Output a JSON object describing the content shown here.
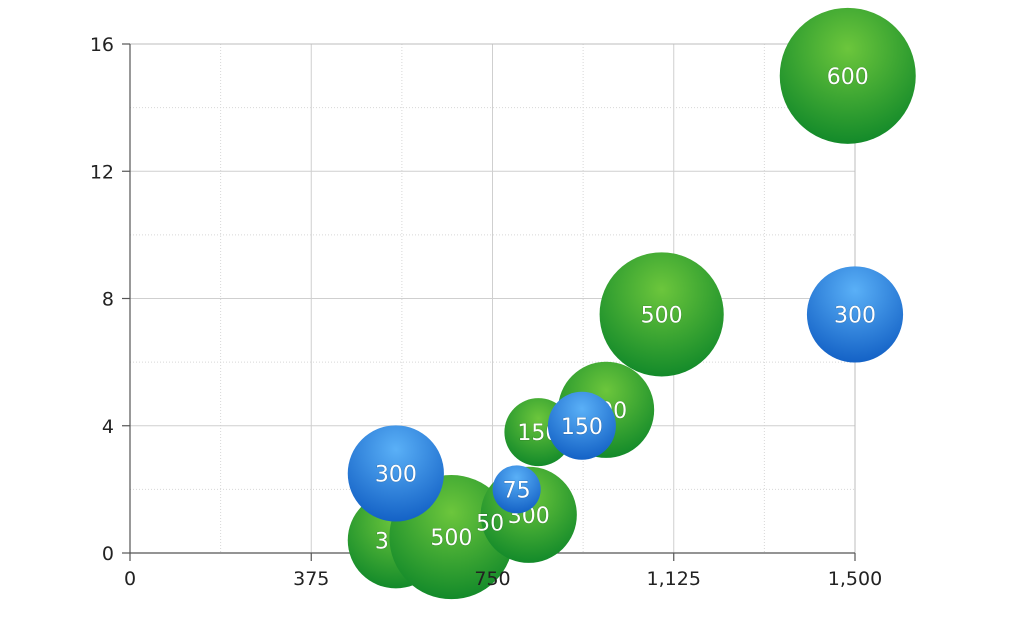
{
  "chart_data": {
    "type": "bubble",
    "xlim": [
      0,
      1500
    ],
    "ylim": [
      0,
      16
    ],
    "x_ticks": [
      "0",
      "375",
      "750",
      "1,125",
      "1,500"
    ],
    "x_tick_values": [
      0,
      375,
      750,
      1125,
      1500
    ],
    "y_ticks": [
      "0",
      "4",
      "8",
      "12",
      "16"
    ],
    "y_tick_values": [
      0,
      4,
      8,
      12,
      16
    ],
    "grid": true,
    "series": [
      {
        "color": "#2e9e2c",
        "points": [
          {
            "x": 550,
            "y": 0.4,
            "size": 300,
            "label": "300"
          },
          {
            "x": 665,
            "y": 0.5,
            "size": 500,
            "label": "500"
          },
          {
            "x": 825,
            "y": 1.2,
            "size": 300,
            "label": "300"
          },
          {
            "x": 845,
            "y": 3.8,
            "size": 150,
            "label": "150"
          },
          {
            "x": 985,
            "y": 4.5,
            "size": 300,
            "label": "300"
          },
          {
            "x": 1100,
            "y": 7.5,
            "size": 500,
            "label": "500"
          },
          {
            "x": 1485,
            "y": 15.0,
            "size": 600,
            "label": "600"
          }
        ]
      },
      {
        "color": "#2a7fd8",
        "points": [
          {
            "x": 550,
            "y": 2.5,
            "size": 300,
            "label": "300"
          },
          {
            "x": 800,
            "y": 2.0,
            "size": 75,
            "label": "75"
          },
          {
            "x": 935,
            "y": 4.0,
            "size": 150,
            "label": "150"
          },
          {
            "x": 1500,
            "y": 7.5,
            "size": 300,
            "label": "300"
          }
        ]
      }
    ],
    "green_bubble_label_hidden_behind": "50"
  }
}
